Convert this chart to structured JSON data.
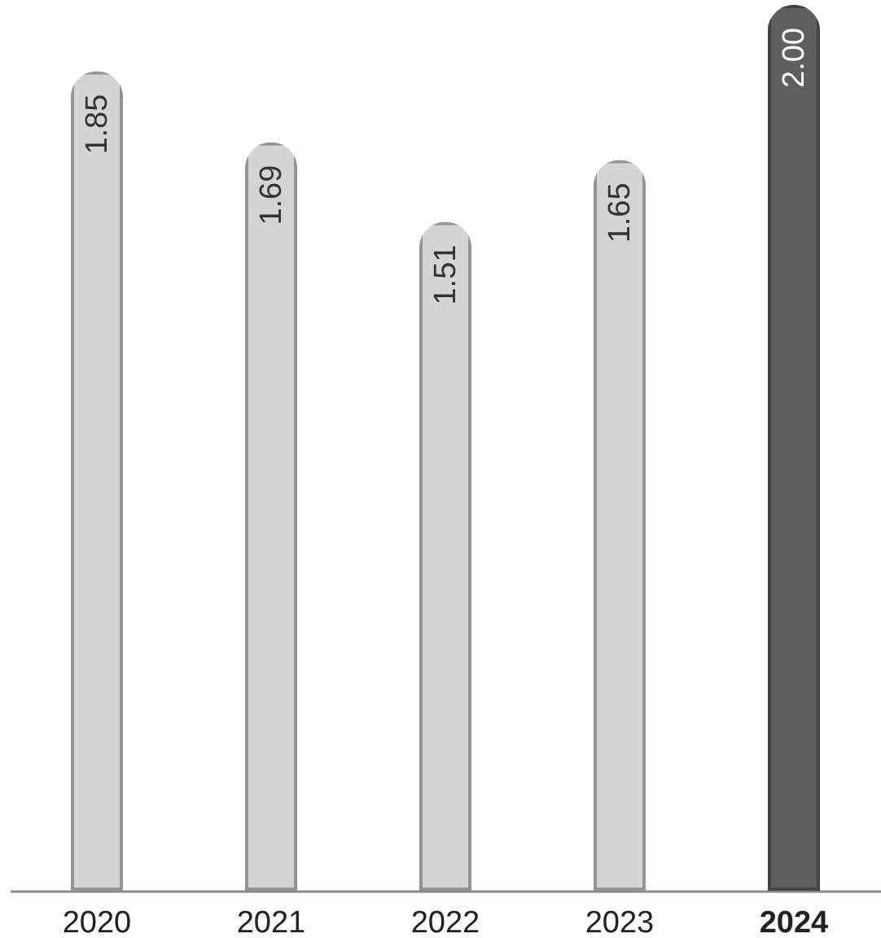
{
  "chart_data": {
    "type": "bar",
    "categories": [
      "2020",
      "2021",
      "2022",
      "2023",
      "2024"
    ],
    "values": [
      1.85,
      1.69,
      1.51,
      1.65,
      2.0
    ],
    "colors": [
      "#d4d4d4",
      "#d4d4d4",
      "#d4d4d4",
      "#d4d4d4",
      "#5f5f5f"
    ],
    "value_labels": [
      "1.85",
      "1.69",
      "1.51",
      "1.65",
      "2.00"
    ],
    "ylim": [
      0,
      2
    ],
    "tick_labels": "x"
  }
}
